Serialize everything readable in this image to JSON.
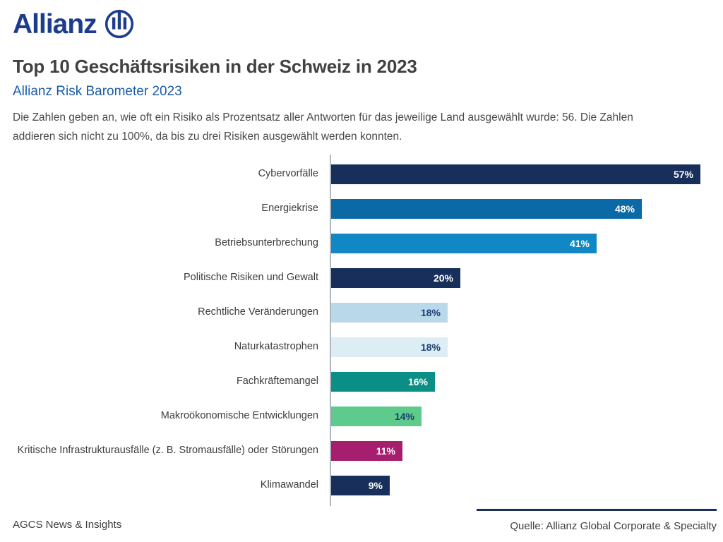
{
  "brand": {
    "wordmark": "Allianz",
    "logo_color": "#1d3d8c",
    "logo_icon": "allianz-three-pillars-circle"
  },
  "header": {
    "title": "Top 10 Geschäftsrisiken in der Schweiz in 2023",
    "subtitle": "Allianz Risk Barometer 2023",
    "description_lines": [
      "Die Zahlen geben an, wie oft ein Risiko als Prozentsatz aller Antworten für das jeweilige Land ausgewählt wurde: 56. Die Zahlen",
      "addieren sich nicht zu 100%, da bis zu drei Risiken ausgewählt werden konnten."
    ]
  },
  "chart_data": {
    "type": "bar",
    "orientation": "horizontal",
    "title": "Top 10 Geschäftsrisiken in der Schweiz in 2023",
    "unit": "%",
    "grid": false,
    "xlim": [
      0,
      58.7
    ],
    "axis_color": "#b0b8bf",
    "categories": [
      "Cybervorfälle",
      "Energiekrise",
      "Betriebsunterbrechung",
      "Politische Risiken und Gewalt",
      "Rechtliche Veränderungen",
      "Naturkatastrophen",
      "Fachkräftemangel",
      "Makroökonomische Entwicklungen",
      "Kritische Infrastrukturausfälle (z. B. Stromausfälle) oder Störungen",
      "Klimawandel"
    ],
    "values": [
      57,
      48,
      41,
      20,
      18,
      18,
      16,
      14,
      11,
      9
    ],
    "bars": [
      {
        "label": "Cybervorfälle",
        "value": 57,
        "display": "57%",
        "color": "#172f5a",
        "value_color": "#ffffff"
      },
      {
        "label": "Energiekrise",
        "value": 48,
        "display": "48%",
        "color": "#0b6aa5",
        "value_color": "#ffffff"
      },
      {
        "label": "Betriebsunterbrechung",
        "value": 41,
        "display": "41%",
        "color": "#1187c3",
        "value_color": "#ffffff"
      },
      {
        "label": "Politische Risiken und Gewalt",
        "value": 20,
        "display": "20%",
        "color": "#172f5a",
        "value_color": "#ffffff"
      },
      {
        "label": "Rechtliche Veränderungen",
        "value": 18,
        "display": "18%",
        "color": "#b9d8e9",
        "value_color": "#1b3f73"
      },
      {
        "label": "Naturkatastrophen",
        "value": 18,
        "display": "18%",
        "color": "#ddedf4",
        "value_color": "#1b3f73"
      },
      {
        "label": "Fachkräftemangel",
        "value": 16,
        "display": "16%",
        "color": "#0a8e85",
        "value_color": "#ffffff"
      },
      {
        "label": "Makroökonomische Entwicklungen",
        "value": 14,
        "display": "14%",
        "color": "#5ecb8c",
        "value_color": "#1b3f73"
      },
      {
        "label": "Kritische Infrastrukturausfälle (z. B. Stromausfälle) oder Störungen",
        "value": 11,
        "display": "11%",
        "color": "#a61e6e",
        "value_color": "#ffffff"
      },
      {
        "label": "Klimawandel",
        "value": 9,
        "display": "9%",
        "color": "#172f5a",
        "value_color": "#ffffff"
      }
    ]
  },
  "footer": {
    "left": "AGCS News & Insights",
    "source": "Quelle: Allianz Global Corporate & Specialty"
  }
}
